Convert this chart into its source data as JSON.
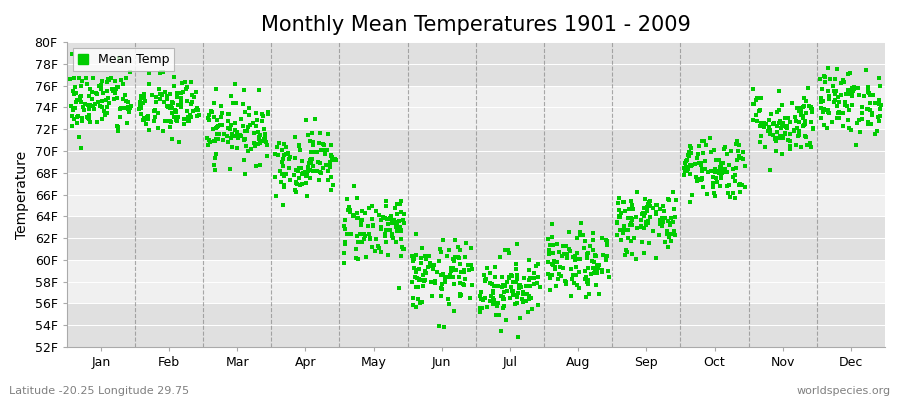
{
  "title": "Monthly Mean Temperatures 1901 - 2009",
  "ylabel": "Temperature",
  "xlabel_labels": [
    "Jan",
    "Feb",
    "Mar",
    "Apr",
    "May",
    "Jun",
    "Jul",
    "Aug",
    "Sep",
    "Oct",
    "Nov",
    "Dec"
  ],
  "ylim": [
    52,
    80
  ],
  "yticks": [
    52,
    54,
    56,
    58,
    60,
    62,
    64,
    66,
    68,
    70,
    72,
    74,
    76,
    78,
    80
  ],
  "ytick_labels": [
    "52F",
    "54F",
    "56F",
    "58F",
    "60F",
    "62F",
    "64F",
    "66F",
    "68F",
    "70F",
    "72F",
    "74F",
    "76F",
    "78F",
    "80F"
  ],
  "marker_color": "#00cc00",
  "marker": "s",
  "marker_size": 2.5,
  "legend_label": "Mean Temp",
  "subtitle_left": "Latitude -20.25 Longitude 29.75",
  "subtitle_right": "worldspecies.org",
  "background_color": "#ffffff",
  "plot_bg_color_light": "#f0f0f0",
  "plot_bg_color_dark": "#e0e0e0",
  "grid_color": "#ffffff",
  "vline_color": "#888888",
  "title_fontsize": 15,
  "axis_fontsize": 10,
  "tick_fontsize": 9,
  "mean_temps_F": [
    74.5,
    74.0,
    72.0,
    69.0,
    63.0,
    58.5,
    57.5,
    59.5,
    63.5,
    68.5,
    72.5,
    74.5
  ],
  "std_temps": [
    1.6,
    1.5,
    1.5,
    1.5,
    1.6,
    1.6,
    1.6,
    1.5,
    1.5,
    1.5,
    1.5,
    1.5
  ],
  "n_years": 109,
  "figsize": [
    9.0,
    4.0
  ],
  "dpi": 100
}
